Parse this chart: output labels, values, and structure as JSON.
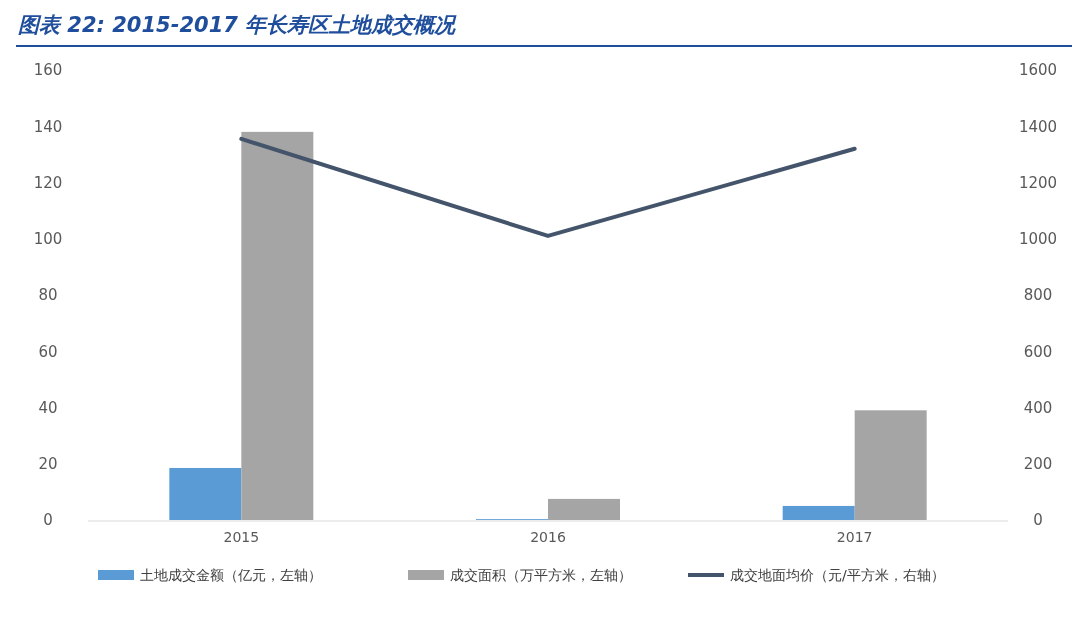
{
  "chart_data": {
    "type": "bar",
    "title": "图表 22:  2015-2017 年长寿区土地成交概况",
    "categories": [
      "2015",
      "2016",
      "2017"
    ],
    "series": [
      {
        "name": "土地成交金额（亿元，左轴）",
        "color": "#5b9bd5",
        "values": [
          18.5,
          0.3,
          5
        ]
      },
      {
        "name": "成交面积（万平方米，左轴）",
        "color": "#a5a5a5",
        "values": [
          138,
          7.5,
          39
        ]
      },
      {
        "name": "成交地面均价（元/平方米，右轴）",
        "type": "line",
        "axis": "y2",
        "color": "#44546a",
        "values": [
          1355,
          1010,
          1320
        ]
      }
    ],
    "ylim": [
      0,
      160
    ],
    "yticks": [
      0,
      20,
      40,
      60,
      80,
      100,
      120,
      140,
      160
    ],
    "y2lim": [
      0,
      1600
    ],
    "y2ticks": [
      0,
      200,
      400,
      600,
      800,
      1000,
      1200,
      1400,
      1600
    ],
    "grid": false,
    "legend": "bottom",
    "marker": "none"
  }
}
